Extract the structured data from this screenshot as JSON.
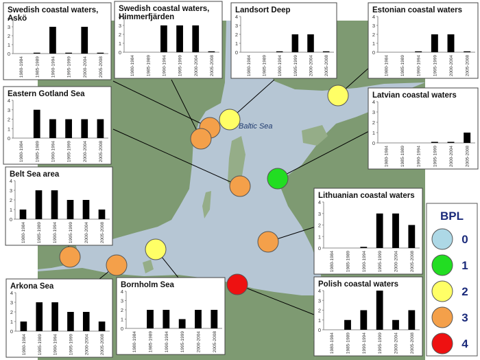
{
  "map": {
    "sea_label": "Baltic Sea",
    "colors": {
      "sea": "#b6c6d4",
      "sea_deep": "#9fb3c6",
      "land": "#7e9a72",
      "land_light": "#95ad88",
      "land_dark": "#5f7c58"
    }
  },
  "period_labels": [
    "1980-1984",
    "1985-1989",
    "1990-1994",
    "1995-1999",
    "2000-2004",
    "2005-2008"
  ],
  "legend": {
    "title": "BPL",
    "items": [
      {
        "label": "0",
        "color": "#add8e6"
      },
      {
        "label": "1",
        "color": "#22dd22"
      },
      {
        "label": "2",
        "color": "#ffff66"
      },
      {
        "label": "3",
        "color": "#f4a04a"
      },
      {
        "label": "4",
        "color": "#ee1111"
      }
    ]
  },
  "sites": [
    {
      "name": "Swedish coastal waters, Askö",
      "bpl": 3
    },
    {
      "name": "Swedish coastal waters, Himmerfjärden",
      "bpl": 3
    },
    {
      "name": "Landsort Deep",
      "bpl": 2
    },
    {
      "name": "Estonian coastal waters",
      "bpl": 2
    },
    {
      "name": "Eastern Gotland Sea",
      "bpl": 3
    },
    {
      "name": "Latvian coastal waters",
      "bpl": 1
    },
    {
      "name": "Belt Sea area",
      "bpl": 3
    },
    {
      "name": "Lithuanian coastal waters",
      "bpl": 3
    },
    {
      "name": "Arkona Sea",
      "bpl": 3
    },
    {
      "name": "Bornholm Sea",
      "bpl": 2
    },
    {
      "name": "Polish coastal waters",
      "bpl": 4
    }
  ],
  "chart_data": [
    {
      "type": "bar",
      "title": "Swedish coastal waters, Askö",
      "categories": [
        "1980-1984",
        "1985-1989",
        "1990-1994",
        "1995-1999",
        "2000-2004",
        "2005-2008"
      ],
      "values": [
        0,
        0.1,
        3,
        0.1,
        3,
        0.1
      ],
      "ylim": [
        0,
        4
      ],
      "yticks": [
        0,
        1,
        2,
        3,
        4
      ]
    },
    {
      "type": "bar",
      "title": "Swedish coastal waters, Himmerfjärden",
      "categories": [
        "1980-1984",
        "1985-1989",
        "1990-1994",
        "1995-1999",
        "2000-2004",
        "2005-2008"
      ],
      "values": [
        0,
        0,
        3,
        3,
        3,
        0.1
      ],
      "ylim": [
        0,
        4
      ],
      "yticks": [
        0,
        1,
        2,
        3,
        4
      ]
    },
    {
      "type": "bar",
      "title": "Landsort Deep",
      "categories": [
        "1980-1984",
        "1985-1989",
        "1990-1994",
        "1995-1999",
        "2000-2004",
        "2005-2008"
      ],
      "values": [
        0,
        0,
        0.1,
        2,
        2,
        0.1
      ],
      "ylim": [
        0,
        4
      ],
      "yticks": [
        0,
        1,
        2,
        3,
        4
      ]
    },
    {
      "type": "bar",
      "title": "Estonian coastal waters",
      "categories": [
        "1980-1984",
        "1985-1989",
        "1990-1994",
        "1995-1999",
        "2000-2004",
        "2005-2008"
      ],
      "values": [
        0,
        0,
        0.1,
        2,
        2,
        0.1
      ],
      "ylim": [
        0,
        4
      ],
      "yticks": [
        0,
        1,
        2,
        3,
        4
      ]
    },
    {
      "type": "bar",
      "title": "Eastern Gotland Sea",
      "categories": [
        "1980-1984",
        "1985-1989",
        "1990-1994",
        "1995-1999",
        "2000-2004",
        "2005-2008"
      ],
      "values": [
        0,
        3,
        2,
        2,
        2,
        2
      ],
      "ylim": [
        0,
        4
      ],
      "yticks": [
        0,
        1,
        2,
        3,
        4
      ]
    },
    {
      "type": "bar",
      "title": "Latvian coastal waters",
      "categories": [
        "1980-1984",
        "1985-1989",
        "1990-1994",
        "1995-1999",
        "2000-2004",
        "2005-2008"
      ],
      "values": [
        0,
        0,
        0,
        0.1,
        0.1,
        1
      ],
      "ylim": [
        0,
        4
      ],
      "yticks": [
        0,
        1,
        2,
        3,
        4
      ]
    },
    {
      "type": "bar",
      "title": "Belt Sea area",
      "categories": [
        "1980-1984",
        "1985-1989",
        "1990-1994",
        "1995-1999",
        "2000-2004",
        "2005-2008"
      ],
      "values": [
        1,
        3,
        3,
        2,
        2,
        1
      ],
      "ylim": [
        0,
        4
      ],
      "yticks": [
        0,
        1,
        2,
        3,
        4
      ]
    },
    {
      "type": "bar",
      "title": "Lithuanian coastal waters",
      "categories": [
        "1980-1984",
        "1985-1989",
        "1990-1994",
        "1995-1999",
        "2000-2004",
        "2005-2008"
      ],
      "values": [
        0,
        0,
        0.1,
        3,
        3,
        2
      ],
      "ylim": [
        0,
        4
      ],
      "yticks": [
        0,
        1,
        2,
        3,
        4
      ]
    },
    {
      "type": "bar",
      "title": "Arkona Sea",
      "categories": [
        "1980-1984",
        "1985-1989",
        "1990-1994",
        "1995-1999",
        "2000-2004",
        "2005-2008"
      ],
      "values": [
        1,
        3,
        3,
        2,
        2,
        1
      ],
      "ylim": [
        0,
        4
      ],
      "yticks": [
        0,
        1,
        2,
        3,
        4
      ]
    },
    {
      "type": "bar",
      "title": "Bornholm Sea",
      "categories": [
        "1980-1984",
        "1985-1989",
        "1990-1994",
        "1995-1999",
        "2000-2004",
        "2005-2008"
      ],
      "values": [
        0,
        2,
        2,
        1,
        2,
        2
      ],
      "ylim": [
        0,
        4
      ],
      "yticks": [
        0,
        1,
        2,
        3,
        4
      ]
    },
    {
      "type": "bar",
      "title": "Polish coastal waters",
      "categories": [
        "1980-1984",
        "1985-1989",
        "1990-1994",
        "1995-1999",
        "2000-2004",
        "2005-2008"
      ],
      "values": [
        0,
        1,
        2,
        4,
        1,
        2
      ],
      "ylim": [
        0,
        4
      ],
      "yticks": [
        0,
        1,
        2,
        3,
        4
      ]
    }
  ]
}
